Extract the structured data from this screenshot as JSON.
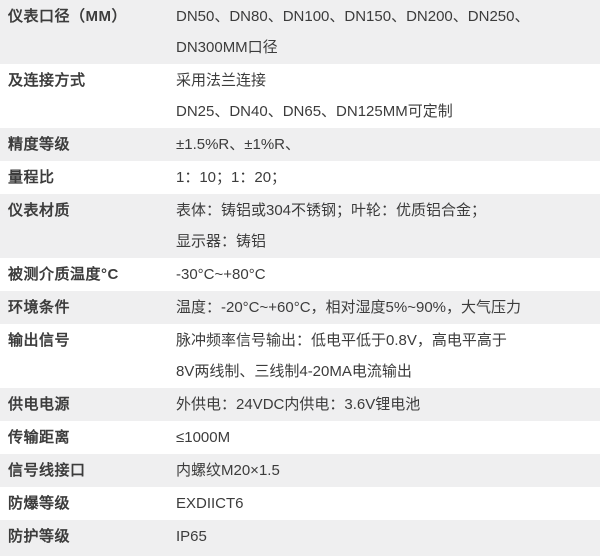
{
  "colors": {
    "row_shaded": "#efeff0",
    "row_plain": "#ffffff",
    "text": "#3c3c3c"
  },
  "table": {
    "rows": [
      {
        "label": "仪表口径（MM）",
        "value": "DN50、DN80、DN100、DN150、DN200、DN250、\nDN300MM口径",
        "shaded": true
      },
      {
        "label": "及连接方式",
        "value": "采用法兰连接\nDN25、DN40、DN65、DN125MM可定制",
        "shaded": false
      },
      {
        "label": "精度等级",
        "value": "±1.5%R、±1%R、",
        "shaded": true
      },
      {
        "label": "量程比",
        "value": "1：10；1：20；",
        "shaded": false
      },
      {
        "label": "仪表材质",
        "value": "表体：铸铝或304不锈钢；叶轮：优质铝合金；\n显示器：铸铝",
        "shaded": true
      },
      {
        "label": "被测介质温度°C",
        "value": "-30°C~+80°C",
        "shaded": false
      },
      {
        "label": "环境条件",
        "value": "温度：-20°C~+60°C，相对湿度5%~90%，大气压力",
        "shaded": true
      },
      {
        "label": "输出信号",
        "value": "脉冲频率信号输出：低电平低于0.8V，高电平高于\n8V两线制、三线制4-20MA电流输出",
        "shaded": false
      },
      {
        "label": "供电电源",
        "value": "外供电：24VDC内供电：3.6V锂电池",
        "shaded": true
      },
      {
        "label": "传输距离",
        "value": "≤1000M",
        "shaded": false
      },
      {
        "label": "信号线接口",
        "value": "内螺纹M20×1.5",
        "shaded": true
      },
      {
        "label": "防爆等级",
        "value": "EXDIICT6",
        "shaded": false
      },
      {
        "label": "防护等级",
        "value": "IP65",
        "shaded": true
      }
    ]
  }
}
